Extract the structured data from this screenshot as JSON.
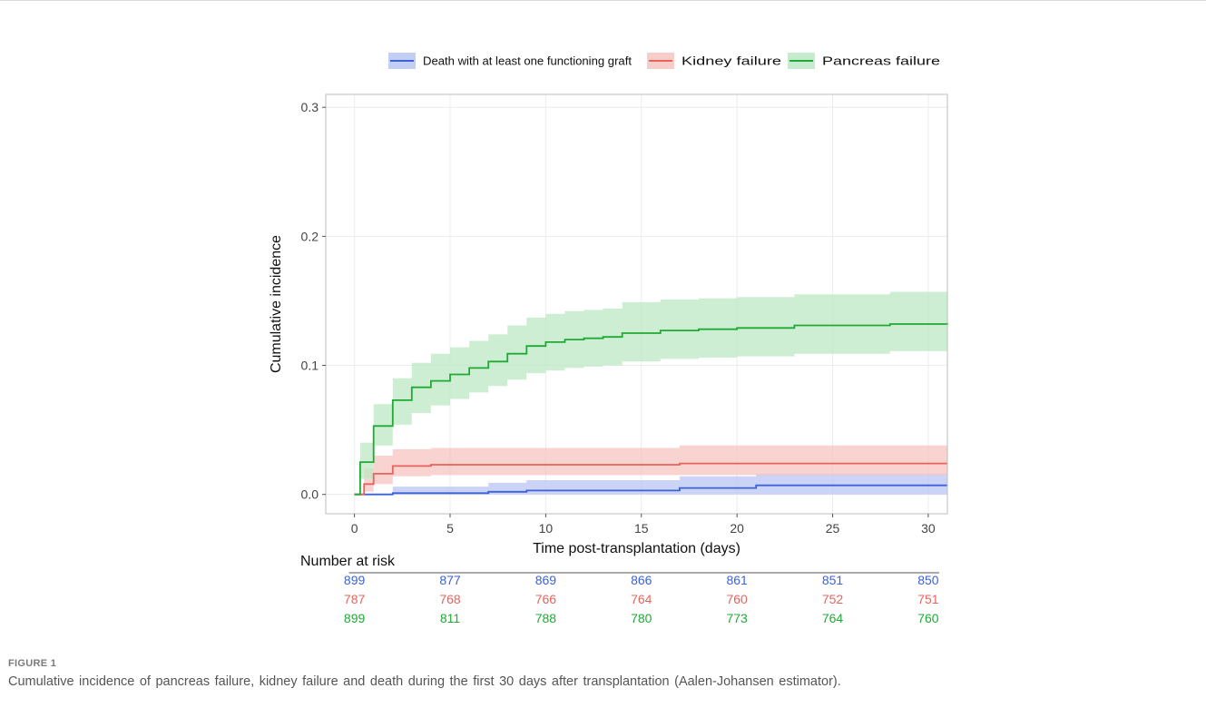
{
  "chart_data": {
    "type": "line",
    "subtype": "step cumulative incidence with confidence bands",
    "ylabel": "Cumulative incidence",
    "xlabel": "Time post-transplantation (days)",
    "xlim": [
      -1.5,
      31
    ],
    "ylim": [
      -0.015,
      0.31
    ],
    "x_ticks": [
      0,
      5,
      10,
      15,
      20,
      25,
      30
    ],
    "y_ticks": [
      0.0,
      0.1,
      0.2,
      0.3
    ],
    "y_tick_labels": [
      "0.0",
      "0.1",
      "0.2",
      "0.3"
    ],
    "grid": true,
    "legend_position": "top",
    "series": [
      {
        "name": "Death with at least one functioning graft",
        "color": "#3c62d8",
        "band_color": "#b9c5f3",
        "x": [
          0,
          2,
          7,
          9,
          17,
          21,
          31
        ],
        "y": [
          0.0,
          0.001,
          0.002,
          0.003,
          0.005,
          0.007,
          0.007
        ],
        "lower": [
          0.0,
          0.0,
          0.0,
          0.0,
          0.0,
          0.0,
          0.0
        ],
        "upper": [
          0.0,
          0.006,
          0.009,
          0.011,
          0.014,
          0.016,
          0.017
        ]
      },
      {
        "name": "Kidney failure",
        "color": "#e8635d",
        "band_color": "#f6c4c0",
        "x": [
          0,
          0.5,
          1,
          2,
          4,
          17,
          31
        ],
        "y": [
          0.0,
          0.008,
          0.016,
          0.022,
          0.023,
          0.024,
          0.024
        ],
        "lower": [
          0.0,
          0.002,
          0.008,
          0.014,
          0.015,
          0.015,
          0.015
        ],
        "upper": [
          0.0,
          0.02,
          0.03,
          0.035,
          0.036,
          0.038,
          0.038
        ]
      },
      {
        "name": "Pancreas failure",
        "color": "#1faa35",
        "band_color": "#bde8c5",
        "x": [
          0,
          0.3,
          1,
          2,
          3,
          4,
          5,
          6,
          7,
          8,
          9,
          10,
          11,
          12,
          13,
          14,
          16,
          18,
          20,
          23,
          28,
          31
        ],
        "y": [
          0.0,
          0.025,
          0.053,
          0.073,
          0.083,
          0.088,
          0.093,
          0.098,
          0.103,
          0.109,
          0.115,
          0.118,
          0.12,
          0.121,
          0.122,
          0.125,
          0.127,
          0.128,
          0.129,
          0.131,
          0.132,
          0.133
        ],
        "lower": [
          0.0,
          0.012,
          0.038,
          0.054,
          0.063,
          0.069,
          0.074,
          0.079,
          0.084,
          0.089,
          0.094,
          0.096,
          0.098,
          0.099,
          0.1,
          0.103,
          0.105,
          0.106,
          0.107,
          0.109,
          0.111,
          0.113
        ],
        "upper": [
          0.0,
          0.04,
          0.07,
          0.09,
          0.102,
          0.109,
          0.114,
          0.119,
          0.124,
          0.131,
          0.137,
          0.14,
          0.142,
          0.143,
          0.144,
          0.149,
          0.151,
          0.152,
          0.153,
          0.155,
          0.157,
          0.158
        ]
      }
    ],
    "risk_table": {
      "title": "Number at risk",
      "times": [
        0,
        5,
        10,
        15,
        20,
        25,
        30
      ],
      "rows": [
        {
          "color": "#3c62d8",
          "values": [
            "899",
            "877",
            "869",
            "866",
            "861",
            "851",
            "850"
          ]
        },
        {
          "color": "#e8635d",
          "values": [
            "787",
            "768",
            "766",
            "764",
            "760",
            "752",
            "751"
          ]
        },
        {
          "color": "#1faa35",
          "values": [
            "899",
            "811",
            "788",
            "780",
            "773",
            "764",
            "760"
          ]
        }
      ]
    }
  },
  "caption": {
    "label": "FIGURE 1",
    "text": "Cumulative incidence of pancreas failure, kidney failure and death during the first 30 days after transplantation (Aalen-Johansen estimator)."
  }
}
